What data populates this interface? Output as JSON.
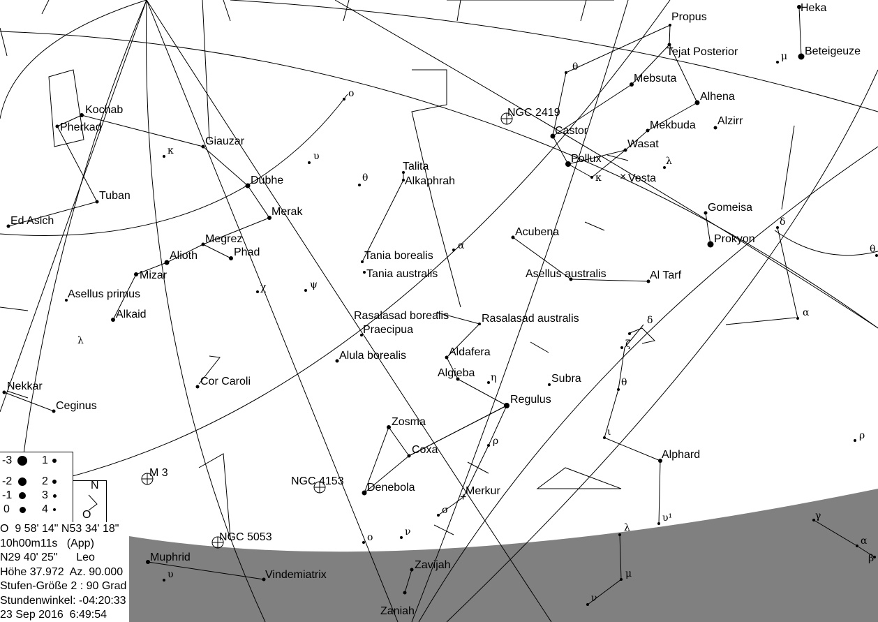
{
  "view": {
    "horizon_color": "#808080",
    "line_color": "#000000",
    "background": "#ffffff"
  },
  "stars": [
    "Heka",
    "Propus",
    "Tejat Posterior",
    "Beteigeuze",
    "Mebsuta",
    "Alhena",
    "Castor",
    "Mekbuda",
    "Alzirr",
    "Wasat",
    "Pollux",
    "Gomeisa",
    "Prokyon",
    "Acubena",
    "Al Tarf",
    "Asellus australis",
    "Kochab",
    "Pherkad",
    "Giauzar",
    "Tuban",
    "Ed Asich",
    "Dubhe",
    "Merak",
    "Megrez",
    "Phad",
    "Alioth",
    "Mizar",
    "Asellus primus",
    "Alkaid",
    "Talita",
    "Alkaphrah",
    "Tania borealis",
    "Tania australis",
    "Rasalasad borealis",
    "Rasalasad australis",
    "Praecipua",
    "Aldafera",
    "Alula borealis",
    "Algieba",
    "Subra",
    "Regulus",
    "Cor Caroli",
    "Nekkar",
    "Ceginus",
    "Zosma",
    "Coxa",
    "Denebola",
    "Alphard",
    "Muphrid",
    "Vindemiatrix",
    "Zavijah",
    "Zaniah"
  ],
  "deep_sky": [
    {
      "label": "NGC 2419",
      "icon": "cluster-icon"
    },
    {
      "label": "M 3",
      "icon": "cluster-icon"
    },
    {
      "label": "NGC 4153",
      "icon": "galaxy-icon"
    },
    {
      "label": "NGC 5053",
      "icon": "cluster-icon"
    }
  ],
  "solar_system": [
    {
      "label": "Vesta",
      "icon": "asteroid-x-icon"
    },
    {
      "label": "Merkur",
      "icon": "planet-plus-icon"
    }
  ],
  "greek": [
    "θ",
    "ο",
    "υ",
    "κ",
    "θ",
    "α",
    "χ",
    "ψ",
    "λ",
    "η",
    "δ",
    "ζ",
    "θ",
    "ι",
    "ρ",
    "σ",
    "ν",
    "ο",
    "υ",
    "λ",
    "υ¹",
    "μ",
    "ν",
    "γ",
    "α",
    "β",
    "δ",
    "α",
    "θ",
    "ρ",
    "μ",
    "κ",
    "λ"
  ],
  "legend": {
    "magnitudes": [
      "-3",
      "-2",
      "-1",
      "0",
      "1",
      "2",
      "3",
      "4"
    ],
    "compass_north": "N",
    "compass_east": "O"
  },
  "info": [
    "O  9 58' 14\" N53 34' 18\"",
    "10h00m11s   (App)",
    "N29 40' 25\"      Leo",
    "Höhe 37.972  Az. 90.000",
    "Stufen-Größe 2 : 90 Grad",
    "Stundenwinkel: -04:20:33",
    "23 Sep 2016  6:49:54"
  ]
}
